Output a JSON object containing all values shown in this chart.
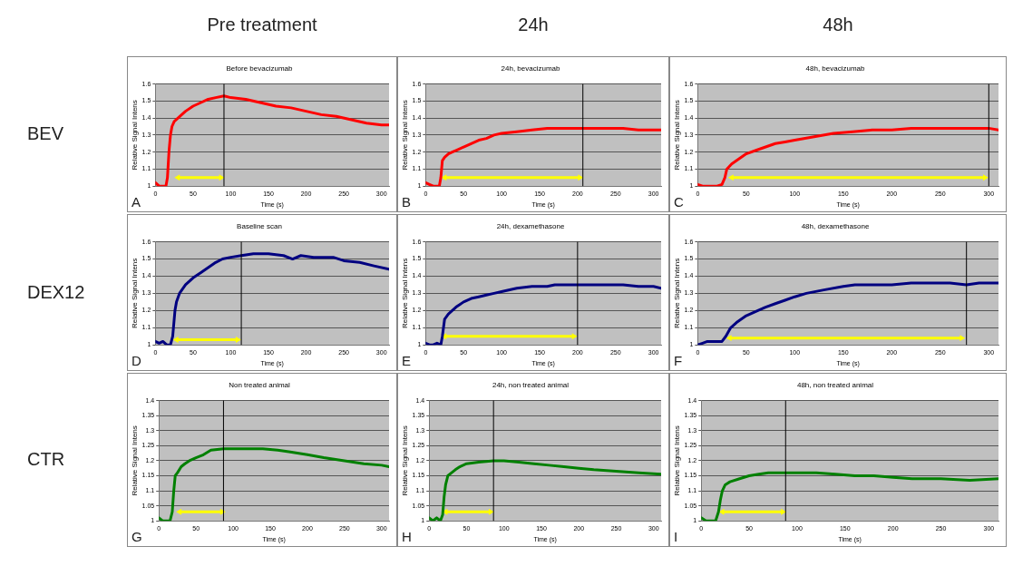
{
  "chart_data": [
    {
      "type": "line",
      "title": "Before bevacizumab",
      "xlabel": "Time (s)",
      "ylabel": "Relative Signal Intens",
      "annotations": [
        "Pre treatment",
        "BEV",
        "A"
      ],
      "xlim": [
        0,
        310
      ],
      "xticks": [
        0,
        50,
        100,
        150,
        200,
        250,
        300
      ],
      "ylim": [
        1,
        1.6
      ],
      "yticks": [
        1,
        1.1,
        1.2,
        1.3,
        1.4,
        1.5,
        1.6
      ],
      "grid": "y",
      "legend": false,
      "marker": "none",
      "ref_lines": [
        {
          "axis": "x",
          "value": 91,
          "color": "#000000"
        }
      ],
      "series": [
        {
          "color": "#ff0000",
          "x": [
            0,
            5,
            10,
            14,
            16,
            18,
            20,
            22,
            25,
            30,
            35,
            40,
            50,
            60,
            70,
            80,
            91,
            100,
            120,
            140,
            160,
            180,
            200,
            220,
            240,
            260,
            280,
            300,
            310
          ],
          "values": [
            1.02,
            1.0,
            1.0,
            1.0,
            1.05,
            1.2,
            1.3,
            1.35,
            1.38,
            1.4,
            1.42,
            1.44,
            1.47,
            1.49,
            1.51,
            1.52,
            1.53,
            1.52,
            1.51,
            1.49,
            1.47,
            1.46,
            1.44,
            1.42,
            1.41,
            1.39,
            1.37,
            1.36,
            1.36
          ]
        },
        {
          "color": "#ffff00",
          "marker": "triangle",
          "x": [
            30,
            87
          ],
          "values": [
            1.05,
            1.05
          ]
        }
      ]
    },
    {
      "type": "line",
      "title": "24h, bevacizumab",
      "xlabel": "Time (s)",
      "ylabel": "Relative Signal Intens",
      "annotations": [
        "24h",
        "B"
      ],
      "xlim": [
        0,
        310
      ],
      "xticks": [
        0,
        50,
        100,
        150,
        200,
        250,
        300
      ],
      "ylim": [
        1,
        1.6
      ],
      "yticks": [
        1,
        1.1,
        1.2,
        1.3,
        1.4,
        1.5,
        1.6
      ],
      "grid": "y",
      "legend": false,
      "marker": "none",
      "ref_lines": [
        {
          "axis": "x",
          "value": 207,
          "color": "#000000"
        }
      ],
      "series": [
        {
          "color": "#ff0000",
          "x": [
            0,
            5,
            10,
            15,
            18,
            20,
            22,
            25,
            30,
            35,
            40,
            50,
            60,
            70,
            80,
            90,
            100,
            120,
            140,
            160,
            180,
            200,
            220,
            240,
            260,
            280,
            300,
            310
          ],
          "values": [
            1.02,
            1.01,
            1.0,
            1.0,
            1.0,
            1.05,
            1.15,
            1.17,
            1.19,
            1.2,
            1.21,
            1.23,
            1.25,
            1.27,
            1.28,
            1.3,
            1.31,
            1.32,
            1.33,
            1.34,
            1.34,
            1.34,
            1.34,
            1.34,
            1.34,
            1.33,
            1.33,
            1.33
          ]
        },
        {
          "color": "#ffff00",
          "marker": "triangle",
          "x": [
            25,
            203
          ],
          "values": [
            1.05,
            1.05
          ]
        }
      ]
    },
    {
      "type": "line",
      "title": "48h, bevacizumab",
      "xlabel": "Time (s)",
      "ylabel": "Relative Signal Intens",
      "annotations": [
        "48h",
        "C"
      ],
      "xlim": [
        0,
        310
      ],
      "xticks": [
        0,
        50,
        100,
        150,
        200,
        250,
        300
      ],
      "ylim": [
        1,
        1.6
      ],
      "yticks": [
        1,
        1.1,
        1.2,
        1.3,
        1.4,
        1.5,
        1.6
      ],
      "grid": "y",
      "legend": false,
      "marker": "none",
      "ref_lines": [
        {
          "axis": "x",
          "value": 300,
          "color": "#000000"
        }
      ],
      "series": [
        {
          "color": "#ff0000",
          "x": [
            0,
            5,
            10,
            15,
            20,
            25,
            28,
            30,
            35,
            40,
            50,
            60,
            70,
            80,
            90,
            100,
            120,
            140,
            160,
            180,
            200,
            220,
            240,
            260,
            280,
            300,
            310
          ],
          "values": [
            1.01,
            1.0,
            1.0,
            1.0,
            1.0,
            1.01,
            1.05,
            1.1,
            1.13,
            1.15,
            1.19,
            1.21,
            1.23,
            1.25,
            1.26,
            1.27,
            1.29,
            1.31,
            1.32,
            1.33,
            1.33,
            1.34,
            1.34,
            1.34,
            1.34,
            1.34,
            1.33
          ]
        },
        {
          "color": "#ffff00",
          "marker": "triangle",
          "x": [
            35,
            296
          ],
          "values": [
            1.05,
            1.05
          ]
        }
      ]
    },
    {
      "type": "line",
      "title": "Baseline scan",
      "xlabel": "Time (s)",
      "ylabel": "Relative Signal Intens",
      "annotations": [
        "DEX12",
        "D"
      ],
      "xlim": [
        0,
        310
      ],
      "xticks": [
        0,
        50,
        100,
        150,
        200,
        250,
        300
      ],
      "ylim": [
        1,
        1.6
      ],
      "yticks": [
        1,
        1.1,
        1.2,
        1.3,
        1.4,
        1.5,
        1.6
      ],
      "grid": "y",
      "legend": false,
      "marker": "none",
      "ref_lines": [
        {
          "axis": "x",
          "value": 114,
          "color": "#000000"
        }
      ],
      "series": [
        {
          "color": "#000080",
          "x": [
            0,
            5,
            10,
            15,
            20,
            23,
            26,
            28,
            32,
            40,
            50,
            60,
            70,
            80,
            89,
            100,
            114,
            130,
            150,
            170,
            182,
            193,
            210,
            236,
            250,
            271,
            290,
            310
          ],
          "values": [
            1.02,
            1.01,
            1.02,
            1.0,
            1.0,
            1.05,
            1.2,
            1.25,
            1.3,
            1.35,
            1.39,
            1.42,
            1.45,
            1.48,
            1.5,
            1.51,
            1.52,
            1.53,
            1.53,
            1.52,
            1.5,
            1.52,
            1.51,
            1.51,
            1.49,
            1.48,
            1.46,
            1.44
          ]
        },
        {
          "color": "#ffff00",
          "marker": "triangle",
          "x": [
            28,
            109
          ],
          "values": [
            1.03,
            1.03
          ]
        }
      ]
    },
    {
      "type": "line",
      "title": "24h, dexamethasone",
      "xlabel": "Time (s)",
      "ylabel": "Relative Signal Intens",
      "annotations": [
        "E"
      ],
      "xlim": [
        0,
        310
      ],
      "xticks": [
        0,
        50,
        100,
        150,
        200,
        250,
        300
      ],
      "ylim": [
        1,
        1.6
      ],
      "yticks": [
        1,
        1.1,
        1.2,
        1.3,
        1.4,
        1.5,
        1.6
      ],
      "grid": "y",
      "legend": false,
      "marker": "none",
      "ref_lines": [
        {
          "axis": "x",
          "value": 200,
          "color": "#000000"
        }
      ],
      "series": [
        {
          "color": "#000080",
          "x": [
            0,
            5,
            10,
            15,
            20,
            22,
            25,
            30,
            35,
            40,
            50,
            60,
            70,
            80,
            90,
            100,
            120,
            140,
            160,
            170,
            180,
            200,
            220,
            240,
            260,
            280,
            300,
            310
          ],
          "values": [
            1.01,
            1.0,
            1.0,
            1.01,
            1.0,
            1.05,
            1.15,
            1.18,
            1.2,
            1.22,
            1.25,
            1.27,
            1.28,
            1.29,
            1.3,
            1.31,
            1.33,
            1.34,
            1.34,
            1.35,
            1.35,
            1.35,
            1.35,
            1.35,
            1.35,
            1.34,
            1.34,
            1.33
          ]
        },
        {
          "color": "#ffff00",
          "marker": "triangle",
          "x": [
            25,
            195
          ],
          "values": [
            1.05,
            1.05
          ]
        }
      ]
    },
    {
      "type": "line",
      "title": "48h, dexamethasone",
      "xlabel": "Time (s)",
      "ylabel": "Relative Signal Intens",
      "annotations": [
        "F"
      ],
      "xlim": [
        0,
        310
      ],
      "xticks": [
        0,
        50,
        100,
        150,
        200,
        250,
        300
      ],
      "ylim": [
        1,
        1.6
      ],
      "yticks": [
        1,
        1.1,
        1.2,
        1.3,
        1.4,
        1.5,
        1.6
      ],
      "grid": "y",
      "legend": false,
      "marker": "none",
      "ref_lines": [
        {
          "axis": "x",
          "value": 277,
          "color": "#000000"
        }
      ],
      "series": [
        {
          "color": "#000080",
          "x": [
            0,
            5,
            10,
            15,
            20,
            25,
            29,
            32,
            34,
            40,
            50,
            62,
            70,
            80,
            90,
            100,
            112,
            130,
            150,
            162,
            180,
            200,
            220,
            240,
            260,
            277,
            290,
            300,
            310
          ],
          "values": [
            1.0,
            1.01,
            1.02,
            1.02,
            1.02,
            1.02,
            1.05,
            1.08,
            1.1,
            1.13,
            1.17,
            1.2,
            1.22,
            1.24,
            1.26,
            1.28,
            1.3,
            1.32,
            1.34,
            1.35,
            1.35,
            1.35,
            1.36,
            1.36,
            1.36,
            1.35,
            1.36,
            1.36,
            1.36
          ]
        },
        {
          "color": "#ffff00",
          "marker": "triangle",
          "x": [
            33,
            272
          ],
          "values": [
            1.04,
            1.04
          ]
        }
      ]
    },
    {
      "type": "line",
      "title": "Non treated animal",
      "xlabel": "Time (s)",
      "ylabel": "Relative Signal Intens",
      "annotations": [
        "CTR",
        "G"
      ],
      "xlim": [
        0,
        310
      ],
      "xticks": [
        0,
        50,
        100,
        150,
        200,
        250,
        300
      ],
      "ylim": [
        1,
        1.4
      ],
      "yticks": [
        1,
        1.05,
        1.1,
        1.15,
        1.2,
        1.25,
        1.3,
        1.35,
        1.4
      ],
      "grid": "y",
      "legend": false,
      "marker": "none",
      "ref_lines": [
        {
          "axis": "x",
          "value": 87,
          "color": "#000000"
        }
      ],
      "series": [
        {
          "color": "#008000",
          "x": [
            0,
            5,
            10,
            15,
            18,
            20,
            22,
            25,
            30,
            35,
            41,
            50,
            60,
            70,
            87,
            100,
            120,
            140,
            160,
            175,
            200,
            222,
            250,
            276,
            300,
            310
          ],
          "values": [
            1.01,
            1.0,
            1.0,
            1.0,
            1.03,
            1.1,
            1.15,
            1.16,
            1.18,
            1.19,
            1.2,
            1.21,
            1.22,
            1.235,
            1.24,
            1.24,
            1.24,
            1.24,
            1.235,
            1.23,
            1.22,
            1.21,
            1.2,
            1.19,
            1.185,
            1.18
          ]
        },
        {
          "color": "#ffff00",
          "marker": "triangle",
          "x": [
            28,
            85
          ],
          "values": [
            1.03,
            1.03
          ]
        }
      ]
    },
    {
      "type": "line",
      "title": "24h, non treated animal",
      "xlabel": "Time (s)",
      "ylabel": "Relative Signal Intens",
      "annotations": [
        "H"
      ],
      "xlim": [
        0,
        310
      ],
      "xticks": [
        0,
        50,
        100,
        150,
        200,
        250,
        300
      ],
      "ylim": [
        1,
        1.4
      ],
      "yticks": [
        1,
        1.05,
        1.1,
        1.15,
        1.2,
        1.25,
        1.3,
        1.35,
        1.4
      ],
      "grid": "y",
      "legend": false,
      "marker": "none",
      "ref_lines": [
        {
          "axis": "x",
          "value": 86,
          "color": "#000000"
        }
      ],
      "series": [
        {
          "color": "#008000",
          "x": [
            0,
            5,
            10,
            15,
            18,
            20,
            22,
            25,
            30,
            35,
            41,
            50,
            66,
            86,
            100,
            120,
            140,
            160,
            180,
            200,
            220,
            250,
            280,
            310
          ],
          "values": [
            1.01,
            1.0,
            1.01,
            1.0,
            1.02,
            1.08,
            1.12,
            1.15,
            1.16,
            1.17,
            1.18,
            1.19,
            1.195,
            1.2,
            1.2,
            1.195,
            1.19,
            1.185,
            1.18,
            1.175,
            1.17,
            1.165,
            1.16,
            1.155
          ]
        },
        {
          "color": "#ffff00",
          "marker": "triangle",
          "x": [
            22,
            82
          ],
          "values": [
            1.03,
            1.03
          ]
        }
      ]
    },
    {
      "type": "line",
      "title": "48h, non treated animal",
      "xlabel": "Time (s)",
      "ylabel": "Relative Signal Intens",
      "annotations": [
        "I"
      ],
      "xlim": [
        0,
        310
      ],
      "xticks": [
        0,
        50,
        100,
        150,
        200,
        250,
        300
      ],
      "ylim": [
        1,
        1.4
      ],
      "yticks": [
        1,
        1.05,
        1.1,
        1.15,
        1.2,
        1.25,
        1.3,
        1.35,
        1.4
      ],
      "grid": "y",
      "legend": false,
      "marker": "none",
      "ref_lines": [
        {
          "axis": "x",
          "value": 88,
          "color": "#000000"
        }
      ],
      "series": [
        {
          "color": "#008000",
          "x": [
            0,
            5,
            10,
            15,
            18,
            20,
            22,
            25,
            30,
            40,
            50,
            60,
            70,
            88,
            100,
            120,
            140,
            160,
            180,
            200,
            220,
            250,
            280,
            310
          ],
          "values": [
            1.01,
            1.0,
            1.0,
            1.0,
            1.03,
            1.07,
            1.1,
            1.12,
            1.13,
            1.14,
            1.15,
            1.155,
            1.16,
            1.16,
            1.16,
            1.16,
            1.155,
            1.15,
            1.15,
            1.145,
            1.14,
            1.14,
            1.135,
            1.14
          ]
        },
        {
          "color": "#ffff00",
          "marker": "triangle",
          "x": [
            22,
            85
          ],
          "values": [
            1.03,
            1.03
          ]
        }
      ]
    }
  ]
}
